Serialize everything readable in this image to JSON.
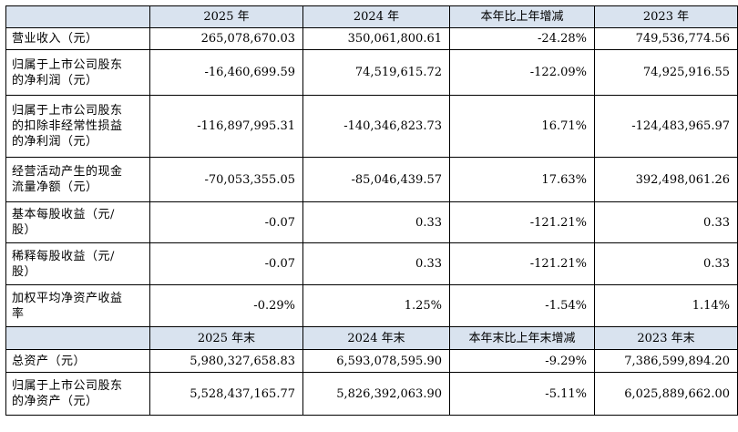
{
  "header_top": [
    "",
    "2025 年",
    "2024 年",
    "本年比上年增减",
    "2023 年"
  ],
  "rows_top": [
    {
      "label": [
        "营业收入（元）"
      ],
      "values": [
        "265,078,670.03",
        "350,061,800.61",
        "-24.28%",
        "749,536,774.56"
      ]
    },
    {
      "label": [
        "归属于上市公司股东",
        "的净利润（元）"
      ],
      "values": [
        "-16,460,699.59",
        "74,519,615.72",
        "-122.09%",
        "74,925,916.55"
      ]
    },
    {
      "label": [
        "归属于上市公司股东",
        "的扣除非经常性损益",
        "的净利润（元）"
      ],
      "values": [
        "-116,897,995.31",
        "-140,346,823.73",
        "16.71%",
        "-124,483,965.97"
      ]
    },
    {
      "label": [
        "经营活动产生的现金",
        "流量净额（元）"
      ],
      "values": [
        "-70,053,355.05",
        "-85,046,439.57",
        "17.63%",
        "392,498,061.26"
      ]
    },
    {
      "label": [
        "基本每股收益（元/",
        "股）"
      ],
      "values": [
        "-0.07",
        "0.33",
        "-121.21%",
        "0.33"
      ]
    },
    {
      "label": [
        "稀释每股收益（元/",
        "股）"
      ],
      "values": [
        "-0.07",
        "0.33",
        "-121.21%",
        "0.33"
      ]
    },
    {
      "label": [
        "加权平均净资产收益",
        "率"
      ],
      "values": [
        "-0.29%",
        "1.25%",
        "-1.54%",
        "1.14%"
      ]
    }
  ],
  "header_bottom": [
    "",
    "2025 年末",
    "2024 年末",
    "本年末比上年末增减",
    "2023 年末"
  ],
  "rows_bottom": [
    {
      "label": [
        "总资产（元）"
      ],
      "values": [
        "5,980,327,658.83",
        "6,593,078,595.90",
        "-9.29%",
        "7,386,599,894.20"
      ]
    },
    {
      "label": [
        "归属于上市公司股东",
        "的净资产（元）"
      ],
      "values": [
        "5,528,437,165.77",
        "5,826,392,063.90",
        "-5.11%",
        "6,025,889,662.00"
      ]
    }
  ]
}
